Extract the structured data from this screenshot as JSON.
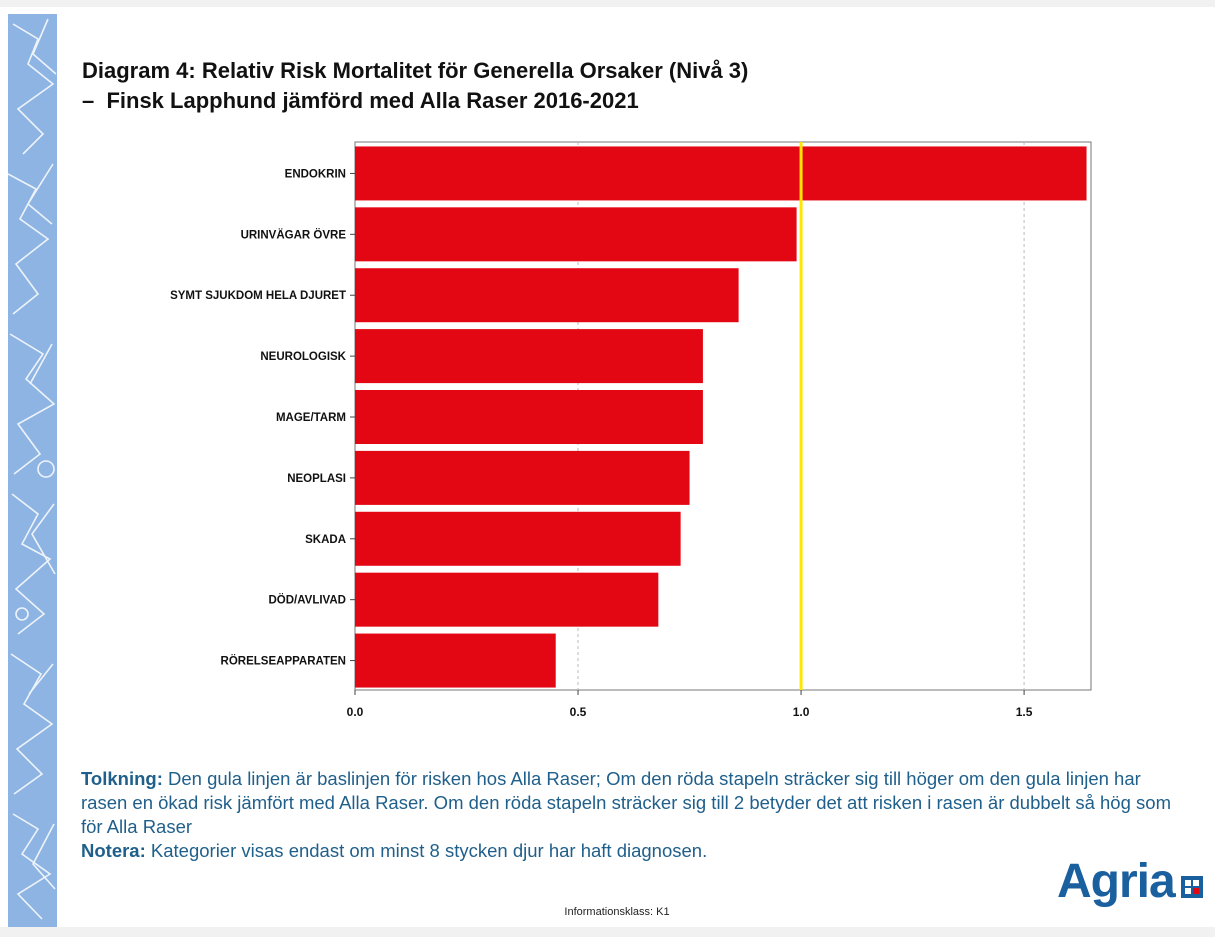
{
  "title": {
    "line1": "Diagram 4: Relativ Risk Mortalitet för Generella Orsaker (Nivå 3)",
    "line2": "–  Finsk Lapphund jämförd med Alla Raser 2016-2021"
  },
  "chart_data": {
    "type": "bar",
    "orientation": "horizontal",
    "categories": [
      "ENDOKRIN",
      "URINVÄGAR ÖVRE",
      "SYMT SJUKDOM HELA DJURET",
      "NEUROLOGISK",
      "MAGE/TARM",
      "NEOPLASI",
      "SKADA",
      "DÖD/AVLIVAD",
      "RÖRELSEAPPARATEN"
    ],
    "values": [
      1.64,
      0.99,
      0.86,
      0.78,
      0.78,
      0.75,
      0.73,
      0.68,
      0.45
    ],
    "xlim": [
      0,
      1.65
    ],
    "xticks": [
      "0.0",
      "0.5",
      "1.0",
      "1.5"
    ],
    "tick_values": [
      0.0,
      0.5,
      1.0,
      1.5
    ],
    "baseline": 1.0,
    "grid": "vertical dashed at 0.5 and 1.5",
    "bar_color": "#e30613",
    "baseline_color": "#ffe600"
  },
  "notes": {
    "tolkning_label": "Tolkning:",
    "tolkning_text": " Den gula linjen är baslinjen för risken hos Alla Raser; Om den röda stapeln sträcker sig till höger om den gula linjen har rasen en ökad risk jämfört med Alla Raser. Om den röda stapeln sträcker sig till 2 betyder det att risken i rasen är dubbelt så hög som för Alla Raser",
    "notera_label": "Notera:",
    "notera_text": " Kategorier visas endast om minst 8 stycken djur har haft diagnosen."
  },
  "footer": {
    "classification": "Informationsklass: K1"
  },
  "logo": {
    "text": "Agria",
    "color": "#1a5f9e"
  }
}
